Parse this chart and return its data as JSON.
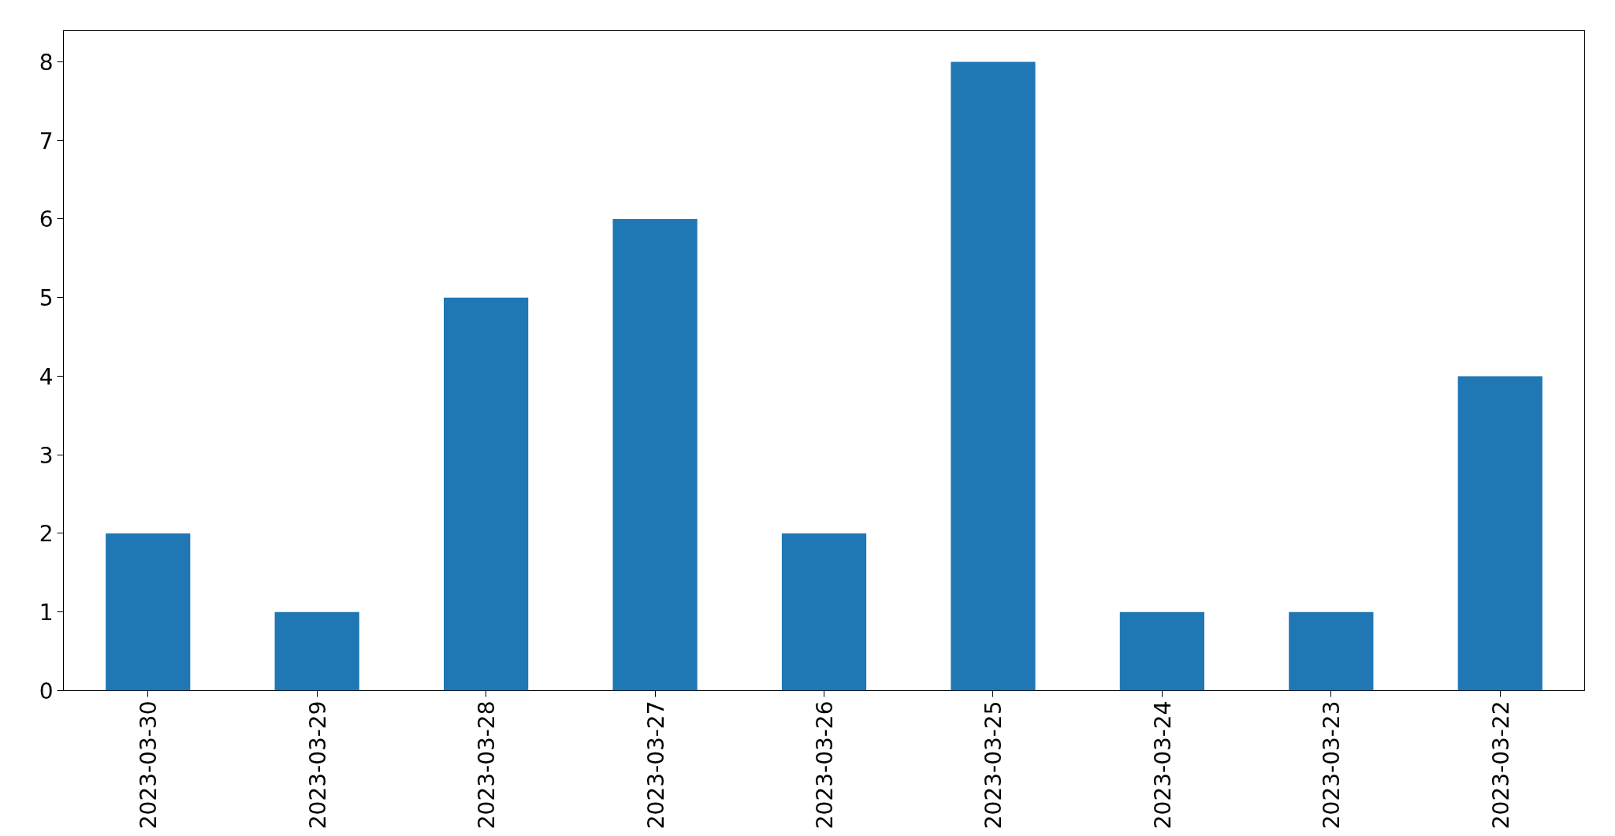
{
  "chart_data": {
    "type": "bar",
    "categories": [
      "2023-03-30",
      "2023-03-29",
      "2023-03-28",
      "2023-03-27",
      "2023-03-26",
      "2023-03-25",
      "2023-03-24",
      "2023-03-23",
      "2023-03-22"
    ],
    "values": [
      2,
      1,
      5,
      6,
      2,
      8,
      1,
      1,
      4
    ],
    "color": "#1f77b4",
    "ylim": [
      0,
      8.4
    ],
    "yticks": [
      0,
      1,
      2,
      3,
      4,
      5,
      6,
      7,
      8
    ],
    "grid": false
  }
}
